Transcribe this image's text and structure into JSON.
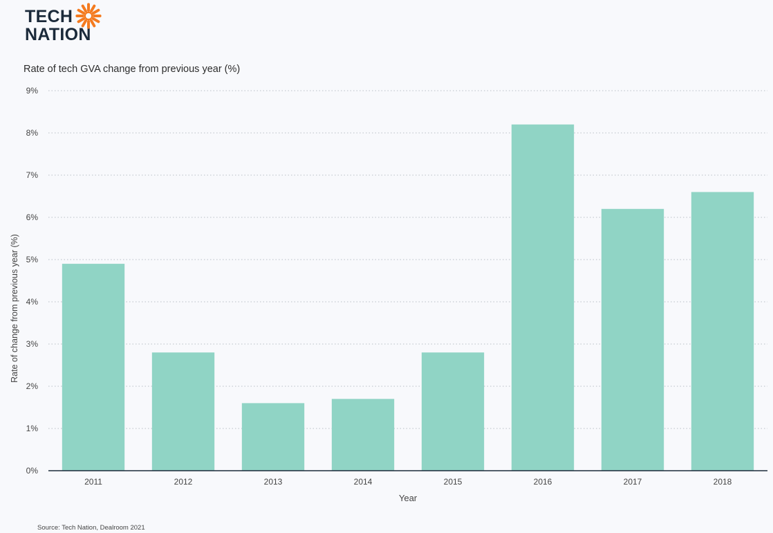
{
  "logo": {
    "line1": "TECH",
    "line2": "NATION",
    "accent_color": "#f47b20"
  },
  "title": "Rate of tech GVA change from previous year (%)",
  "source": "Source: Tech Nation, Dealroom 2021",
  "chart_data": {
    "type": "bar",
    "categories": [
      "2011",
      "2012",
      "2013",
      "2014",
      "2015",
      "2016",
      "2017",
      "2018"
    ],
    "values": [
      4.9,
      2.8,
      1.6,
      1.7,
      2.8,
      8.2,
      6.2,
      6.6
    ],
    "xlabel": "Year",
    "ylabel": "Rate of change from previous year (%)",
    "ylim": [
      0,
      9
    ],
    "yticks": [
      "0%",
      "1%",
      "2%",
      "3%",
      "4%",
      "5%",
      "6%",
      "7%",
      "8%",
      "9%"
    ],
    "grid": "horizontal dotted",
    "bar_color": "#90d4c5",
    "axis_color": "#1b2a3a"
  }
}
